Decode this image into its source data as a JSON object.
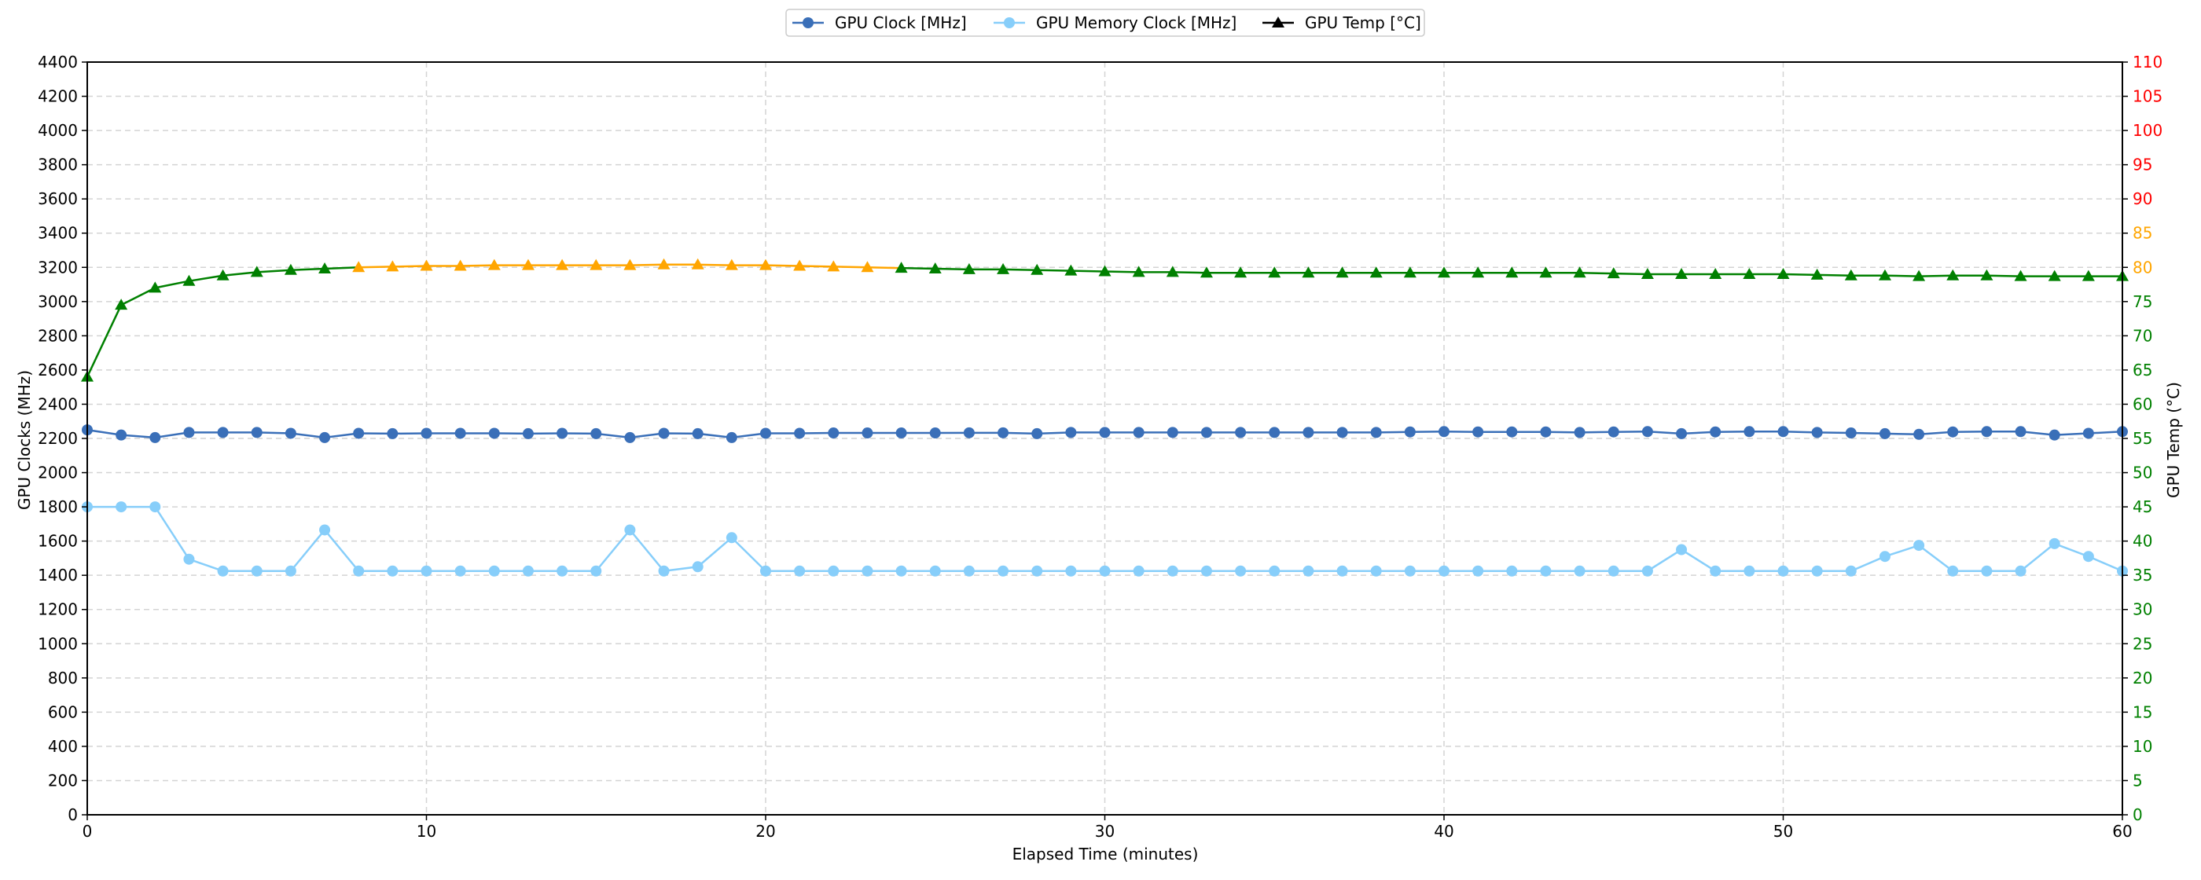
{
  "chart_data": {
    "type": "line",
    "xlabel": "Elapsed Time (minutes)",
    "ylabel_left": "GPU Clocks (MHz)",
    "ylabel_right": "GPU Temp (°C)",
    "xlim": [
      0,
      60
    ],
    "ylim_left": [
      0,
      4400
    ],
    "ylim_right": [
      0,
      110
    ],
    "x_ticks": [
      0,
      10,
      20,
      30,
      40,
      50,
      60
    ],
    "y_ticks_left": [
      0,
      200,
      400,
      600,
      800,
      1000,
      1200,
      1400,
      1600,
      1800,
      2000,
      2200,
      2400,
      2600,
      2800,
      3000,
      3200,
      3400,
      3600,
      3800,
      4000,
      4200,
      4400
    ],
    "y_ticks_right": [
      0,
      5,
      10,
      15,
      20,
      25,
      30,
      35,
      40,
      45,
      50,
      55,
      60,
      65,
      70,
      75,
      80,
      85,
      90,
      95,
      100,
      105,
      110
    ],
    "grid": true,
    "legend_position": "top-center",
    "legend": [
      {
        "label": "GPU Clock [MHz]",
        "marker": "circle",
        "color": "#3a6fb8"
      },
      {
        "label": "GPU Memory Clock [MHz]",
        "marker": "circle",
        "color": "#87cefa"
      },
      {
        "label": "GPU Temp [°C]",
        "marker": "triangle",
        "color": "#000000"
      }
    ],
    "temp_color_scale": [
      {
        "min": 0,
        "max": 80,
        "color": "#008000"
      },
      {
        "min": 80,
        "max": 90,
        "color": "#ffa500"
      },
      {
        "min": 90,
        "max": 110,
        "color": "#ff0000"
      }
    ],
    "x": [
      0,
      1,
      2,
      3,
      4,
      5,
      6,
      7,
      8,
      9,
      10,
      11,
      12,
      13,
      14,
      15,
      16,
      17,
      18,
      19,
      20,
      21,
      22,
      23,
      24,
      25,
      26,
      27,
      28,
      29,
      30,
      31,
      32,
      33,
      34,
      35,
      36,
      37,
      38,
      39,
      40,
      41,
      42,
      43,
      44,
      45,
      46,
      47,
      48,
      49,
      50,
      51,
      52,
      53,
      54,
      55,
      56,
      57,
      58,
      59,
      60
    ],
    "series": [
      {
        "name": "GPU Clock [MHz]",
        "axis": "left",
        "color": "#3a6fb8",
        "values": [
          2250,
          2220,
          2205,
          2235,
          2235,
          2235,
          2230,
          2205,
          2230,
          2228,
          2230,
          2230,
          2230,
          2228,
          2230,
          2228,
          2205,
          2230,
          2228,
          2205,
          2230,
          2230,
          2232,
          2232,
          2232,
          2232,
          2233,
          2233,
          2228,
          2235,
          2235,
          2235,
          2235,
          2235,
          2235,
          2235,
          2235,
          2235,
          2235,
          2238,
          2240,
          2238,
          2238,
          2238,
          2235,
          2238,
          2240,
          2228,
          2238,
          2240,
          2240,
          2235,
          2232,
          2228,
          2224,
          2238,
          2240,
          2240,
          2220,
          2230,
          2240
        ]
      },
      {
        "name": "GPU Memory Clock [MHz]",
        "axis": "left",
        "color": "#87cefa",
        "values": [
          1800,
          1800,
          1800,
          1494,
          1425,
          1425,
          1425,
          1665,
          1425,
          1425,
          1425,
          1425,
          1425,
          1425,
          1425,
          1425,
          1665,
          1425,
          1450,
          1620,
          1425,
          1425,
          1425,
          1425,
          1425,
          1425,
          1425,
          1425,
          1425,
          1425,
          1425,
          1425,
          1425,
          1425,
          1425,
          1425,
          1425,
          1425,
          1425,
          1425,
          1425,
          1425,
          1425,
          1425,
          1425,
          1425,
          1425,
          1550,
          1425,
          1425,
          1425,
          1425,
          1425,
          1510,
          1575,
          1425,
          1425,
          1425,
          1585,
          1510,
          1425
        ]
      },
      {
        "name": "GPU Temp [°C]",
        "axis": "right",
        "values": [
          64,
          74.5,
          77,
          78,
          78.8,
          79.3,
          79.6,
          79.8,
          80,
          80.1,
          80.2,
          80.2,
          80.3,
          80.3,
          80.3,
          80.3,
          80.3,
          80.4,
          80.4,
          80.3,
          80.3,
          80.2,
          80.1,
          80,
          79.9,
          79.8,
          79.7,
          79.7,
          79.6,
          79.5,
          79.4,
          79.3,
          79.3,
          79.2,
          79.2,
          79.2,
          79.2,
          79.2,
          79.2,
          79.2,
          79.2,
          79.2,
          79.2,
          79.2,
          79.2,
          79.1,
          79.0,
          79.0,
          79.0,
          79.0,
          79.0,
          78.9,
          78.8,
          78.8,
          78.7,
          78.8,
          78.8,
          78.7,
          78.7,
          78.7,
          78.7
        ]
      }
    ]
  }
}
